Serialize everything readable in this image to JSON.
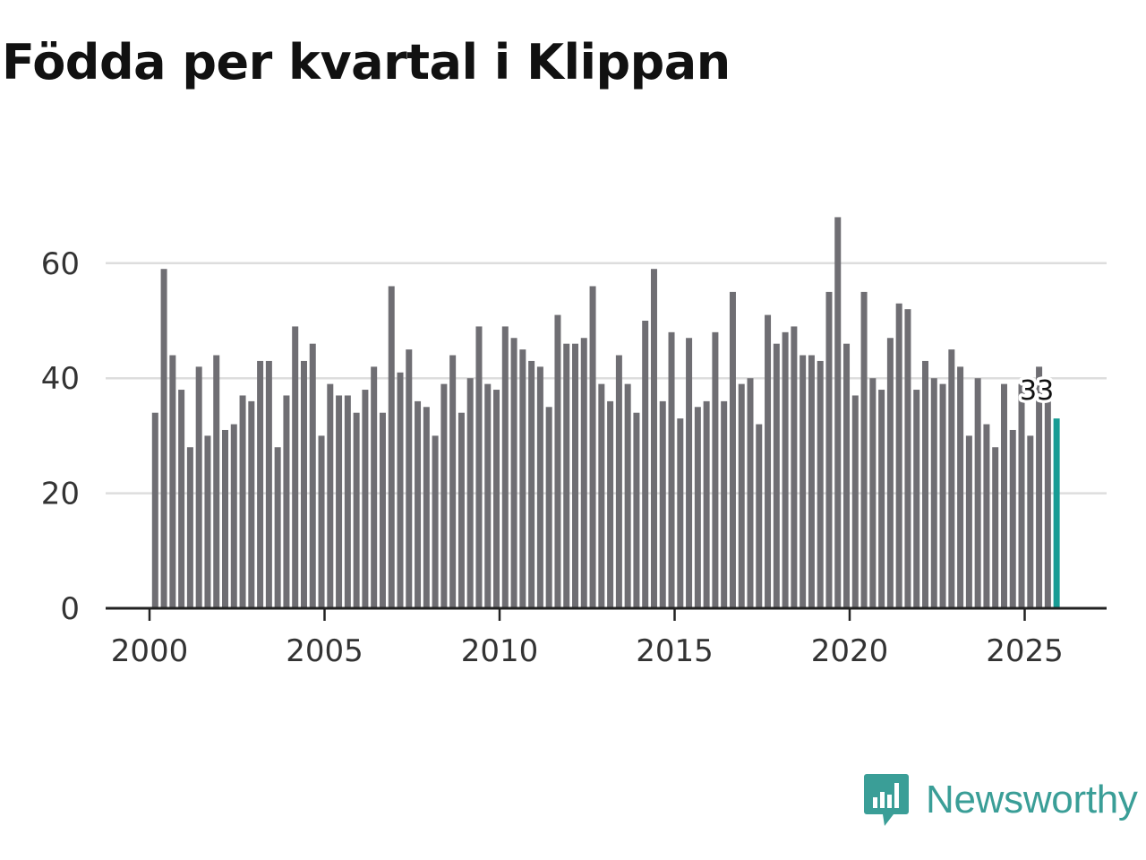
{
  "chart_data": {
    "type": "bar",
    "title": "Födda per kvartal i Klippan",
    "xlabel": "",
    "ylabel": "",
    "x_start_year": 2000,
    "periods_per_year": 4,
    "values": [
      34,
      59,
      44,
      38,
      28,
      42,
      30,
      44,
      31,
      32,
      37,
      36,
      43,
      43,
      28,
      37,
      49,
      43,
      46,
      30,
      39,
      37,
      37,
      34,
      38,
      42,
      34,
      56,
      41,
      45,
      36,
      35,
      30,
      39,
      44,
      34,
      40,
      49,
      39,
      38,
      49,
      47,
      45,
      43,
      42,
      35,
      51,
      46,
      46,
      47,
      56,
      39,
      36,
      44,
      39,
      34,
      50,
      59,
      36,
      48,
      33,
      47,
      35,
      36,
      48,
      36,
      55,
      39,
      40,
      32,
      51,
      46,
      48,
      49,
      44,
      44,
      43,
      55,
      68,
      46,
      37,
      55,
      40,
      38,
      47,
      53,
      52,
      38,
      43,
      40,
      39,
      45,
      42,
      30,
      40,
      32,
      28,
      39,
      31,
      39,
      30,
      42,
      36,
      33
    ],
    "ylim": [
      0,
      70
    ],
    "y_ticks": [
      0,
      20,
      40,
      60
    ],
    "y_tick_labels": [
      "0",
      "20",
      "40",
      "60"
    ],
    "x_ticks": [
      2000,
      2005,
      2010,
      2015,
      2020,
      2025
    ],
    "x_tick_labels": [
      "2000",
      "2005",
      "2010",
      "2015",
      "2020",
      "2025"
    ],
    "highlight_last": true,
    "callout_label": "33",
    "grid": true,
    "colors": {
      "bar": "#6f6e73",
      "highlight": "#179c94",
      "grid": "#dddddd",
      "axis": "#222222"
    }
  },
  "branding": {
    "logo_text": "Newsworthy",
    "logo_icon": "newsworthy-chart-bubble-icon",
    "color": "#3a9e97"
  }
}
